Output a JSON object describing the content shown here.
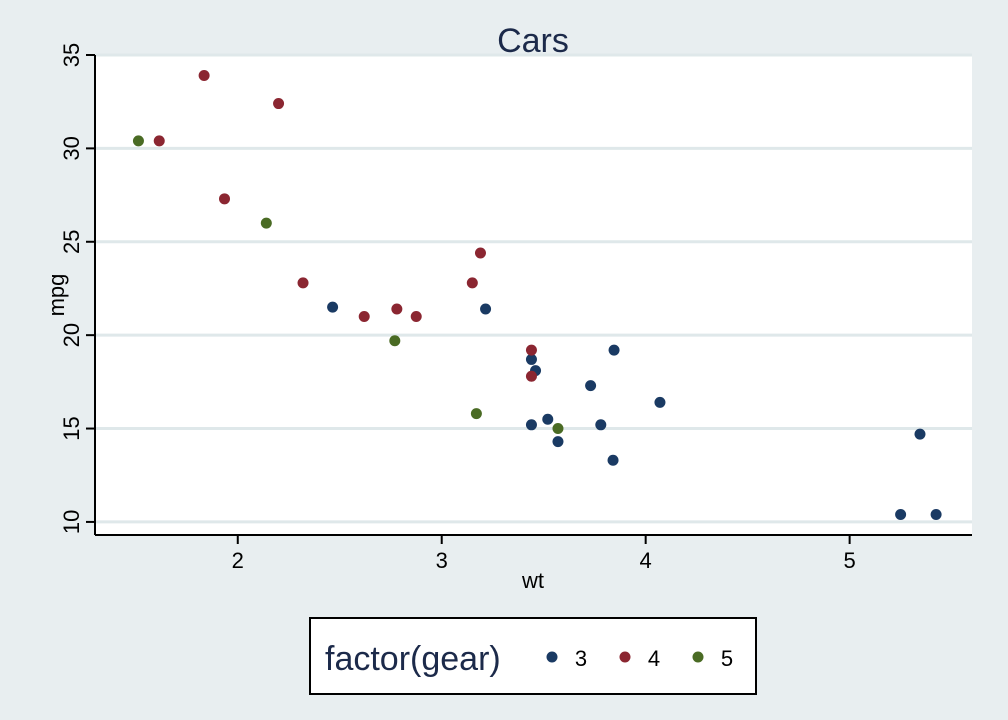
{
  "chart_data": {
    "type": "scatter",
    "title": "Cars",
    "xlabel": "wt",
    "ylabel": "mpg",
    "xlim": [
      1.3,
      5.6
    ],
    "ylim": [
      9.3,
      35
    ],
    "x_ticks": [
      2,
      3,
      4,
      5
    ],
    "y_ticks": [
      10,
      15,
      20,
      25,
      30,
      35
    ],
    "grid": "horizontal",
    "legend": {
      "title": "factor(gear)",
      "position": "bottom"
    },
    "series": [
      {
        "name": "3",
        "color": "#1a3a63",
        "points": [
          [
            2.465,
            21.5
          ],
          [
            3.215,
            21.4
          ],
          [
            3.44,
            18.7
          ],
          [
            3.46,
            18.1
          ],
          [
            3.44,
            15.2
          ],
          [
            3.52,
            15.5
          ],
          [
            3.57,
            14.3
          ],
          [
            3.73,
            17.3
          ],
          [
            3.78,
            15.2
          ],
          [
            3.84,
            13.3
          ],
          [
            3.845,
            19.2
          ],
          [
            4.07,
            16.4
          ],
          [
            5.25,
            10.4
          ],
          [
            5.345,
            14.7
          ],
          [
            5.424,
            10.4
          ]
        ]
      },
      {
        "name": "4",
        "color": "#8b2631",
        "points": [
          [
            1.615,
            30.4
          ],
          [
            1.835,
            33.9
          ],
          [
            1.935,
            27.3
          ],
          [
            2.2,
            32.4
          ],
          [
            2.32,
            22.8
          ],
          [
            2.62,
            21.0
          ],
          [
            2.78,
            21.4
          ],
          [
            2.875,
            21.0
          ],
          [
            3.15,
            22.8
          ],
          [
            3.19,
            24.4
          ],
          [
            3.44,
            19.2
          ],
          [
            3.44,
            17.8
          ]
        ]
      },
      {
        "name": "5",
        "color": "#4a6b24",
        "points": [
          [
            1.513,
            30.4
          ],
          [
            2.14,
            26.0
          ],
          [
            2.77,
            19.7
          ],
          [
            3.17,
            15.8
          ],
          [
            3.57,
            15.0
          ]
        ]
      }
    ]
  }
}
